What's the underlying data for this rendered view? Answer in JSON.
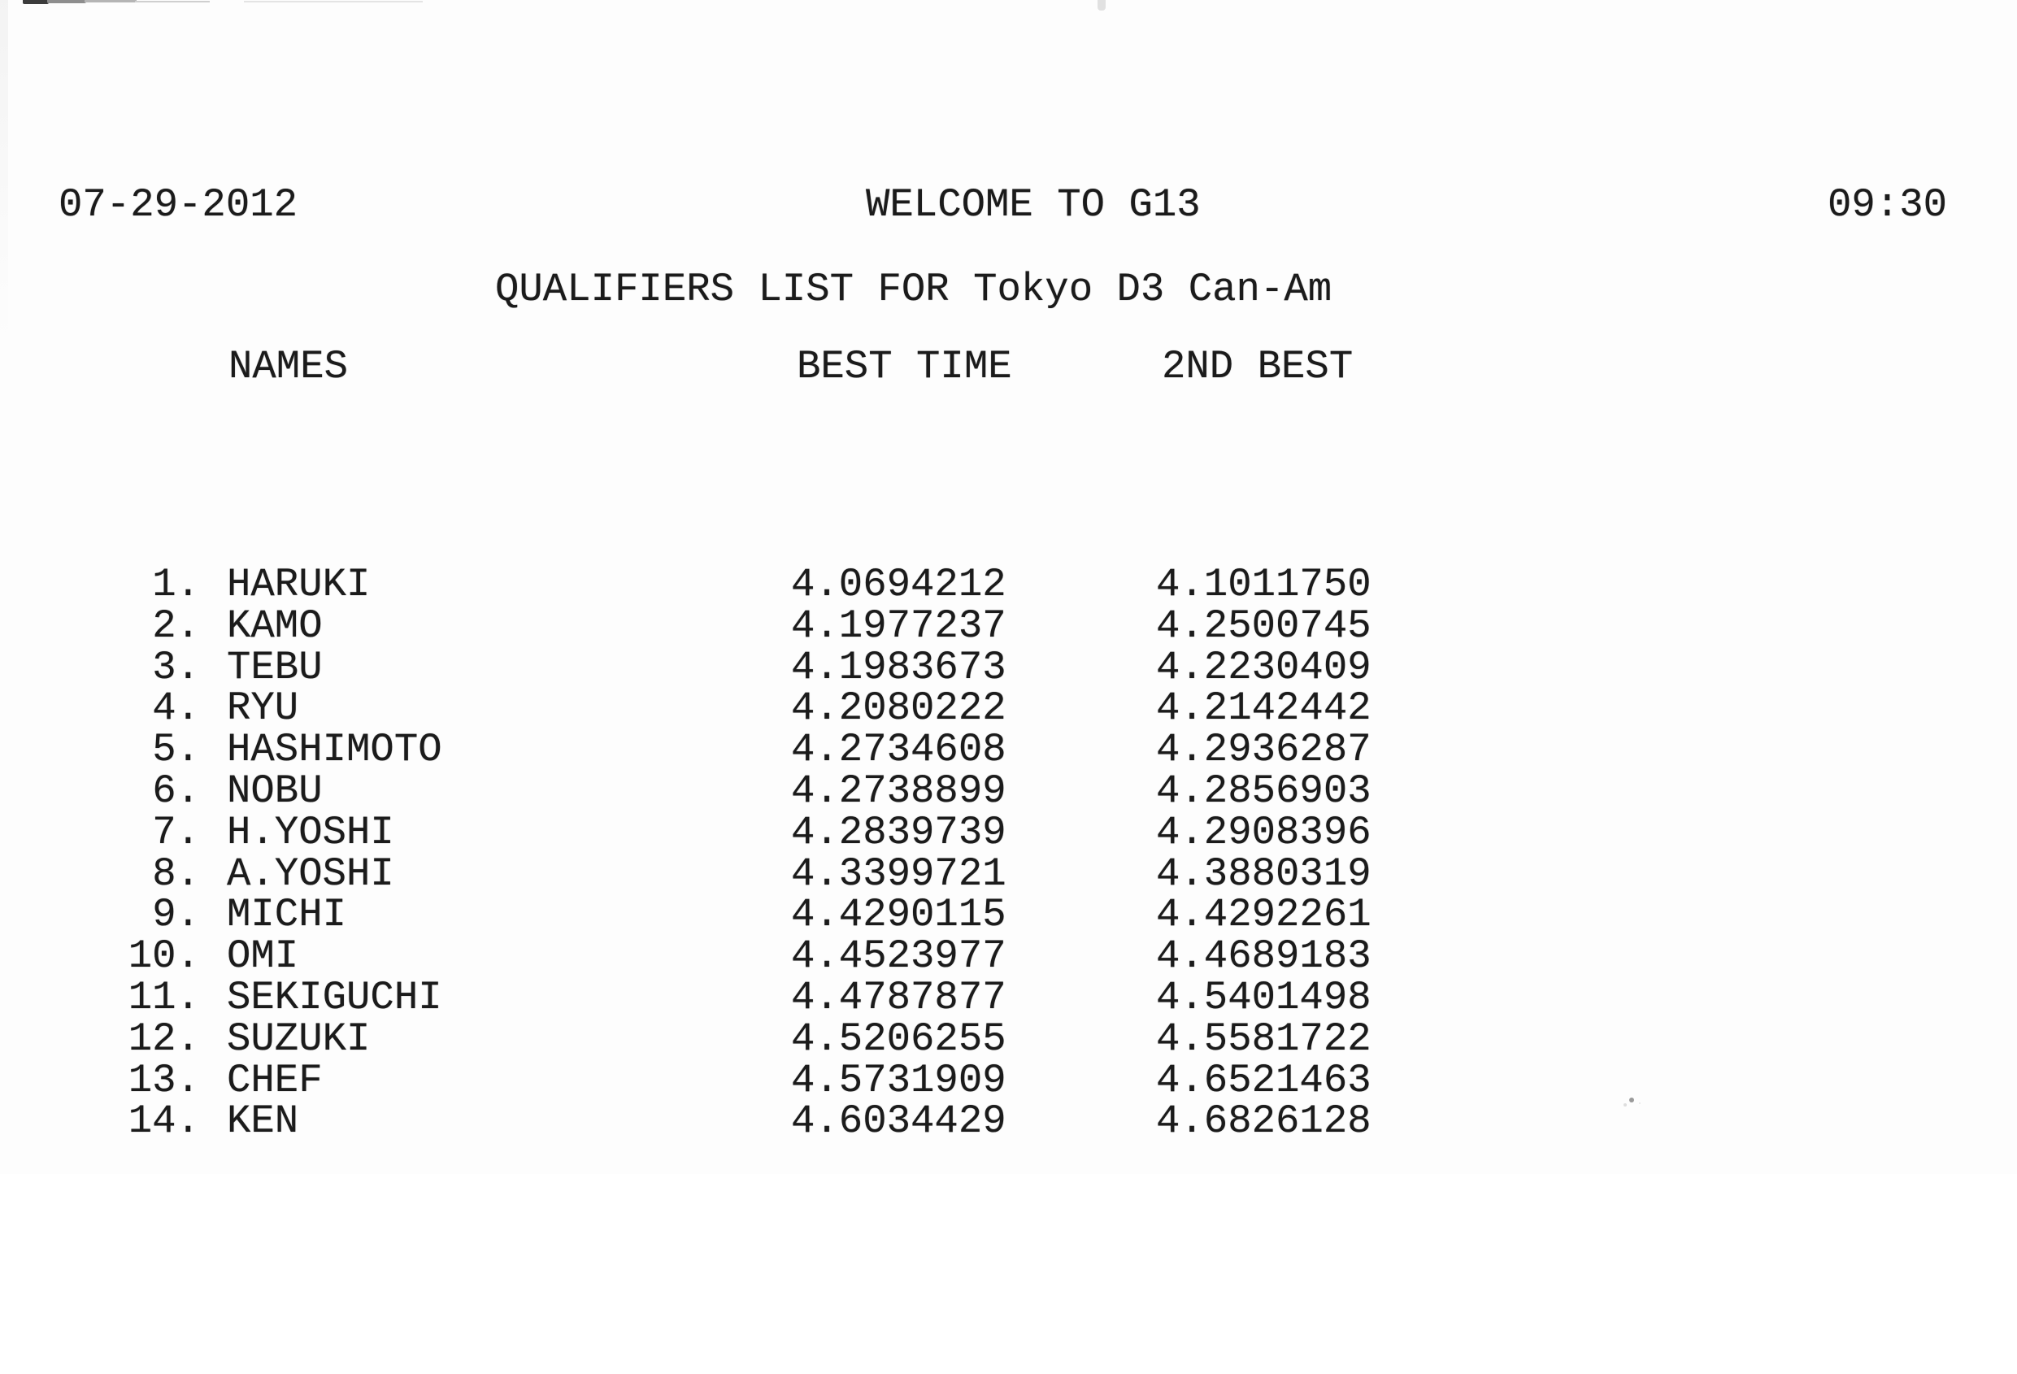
{
  "page": {
    "date": "07-29-2012",
    "title": "WELCOME TO G13",
    "time": "09:30",
    "subtitle": "QUALIFIERS LIST FOR Tokyo D3 Can-Am"
  },
  "table": {
    "headers": {
      "names": "NAMES",
      "best_time": "BEST TIME",
      "second_best": "2ND BEST"
    },
    "rows": [
      {
        "rank": "1.",
        "name": "HARUKI",
        "best_time": "4.0694212",
        "second_best": "4.1011750"
      },
      {
        "rank": "2.",
        "name": "KAMO",
        "best_time": "4.1977237",
        "second_best": "4.2500745"
      },
      {
        "rank": "3.",
        "name": "TEBU",
        "best_time": "4.1983673",
        "second_best": "4.2230409"
      },
      {
        "rank": "4.",
        "name": "RYU",
        "best_time": "4.2080222",
        "second_best": "4.2142442"
      },
      {
        "rank": "5.",
        "name": "HASHIMOTO",
        "best_time": "4.2734608",
        "second_best": "4.2936287"
      },
      {
        "rank": "6.",
        "name": "NOBU",
        "best_time": "4.2738899",
        "second_best": "4.2856903"
      },
      {
        "rank": "7.",
        "name": "H.YOSHI",
        "best_time": "4.2839739",
        "second_best": "4.2908396"
      },
      {
        "rank": "8.",
        "name": "A.YOSHI",
        "best_time": "4.3399721",
        "second_best": "4.3880319"
      },
      {
        "rank": "9.",
        "name": "MICHI",
        "best_time": "4.4290115",
        "second_best": "4.4292261"
      },
      {
        "rank": "10.",
        "name": "OMI",
        "best_time": "4.4523977",
        "second_best": "4.4689183"
      },
      {
        "rank": "11.",
        "name": "SEKIGUCHI",
        "best_time": "4.4787877",
        "second_best": "4.5401498"
      },
      {
        "rank": "12.",
        "name": "SUZUKI",
        "best_time": "4.5206255",
        "second_best": "4.5581722"
      },
      {
        "rank": "13.",
        "name": "CHEF",
        "best_time": "4.5731909",
        "second_best": "4.6521463"
      },
      {
        "rank": "14.",
        "name": "KEN",
        "best_time": "4.6034429",
        "second_best": "4.6826128"
      }
    ]
  },
  "colors": {
    "paper": "#fdfdfd",
    "ink": "#1b1b1b"
  }
}
